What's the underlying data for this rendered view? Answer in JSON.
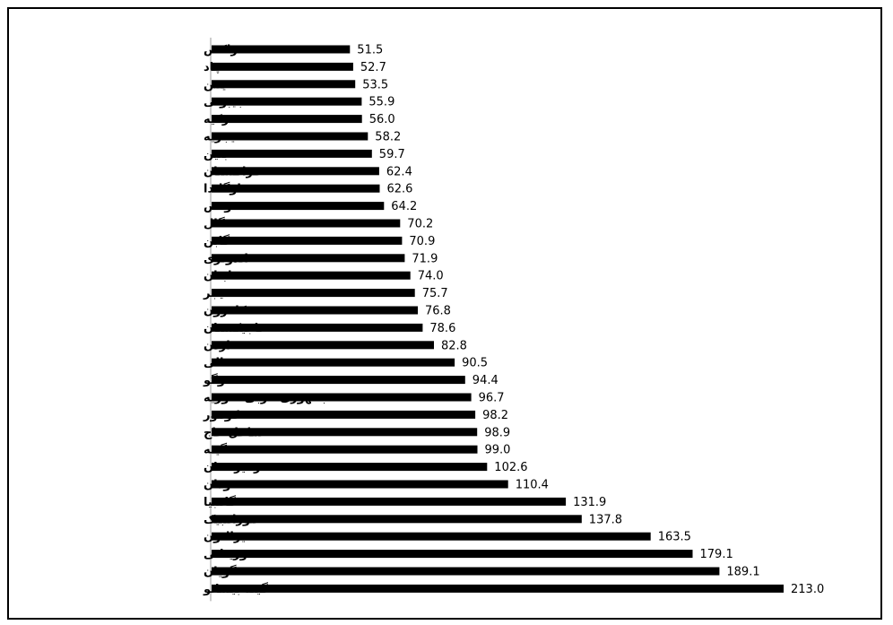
{
  "chart_data": {
    "type": "bar",
    "orientation": "horizontal",
    "categories": [
      "مراکش",
      "چاد",
      "یمن",
      "جیبوتی",
      "ترکیه",
      "نیجریه",
      "بنین",
      "قزاقستان",
      "اوگاندا",
      "تونس",
      "سنگال",
      "گابن",
      "اندونزی",
      "لبنان",
      "نیجر",
      "کامرون",
      "تاجیکستان",
      "اردن",
      "مالی",
      "توگو",
      "جمهوری عربی سوریه",
      "کومور",
      "ساحل عاج",
      "گینه",
      "قرقیزستان",
      "سودان",
      "گامبیا",
      "موزامبیک",
      "سیرالئون",
      "موریتانی",
      "گویان",
      "گینه بیسائو"
    ],
    "values": [
      51.5,
      52.7,
      53.5,
      55.9,
      56.0,
      58.2,
      59.7,
      62.4,
      62.6,
      64.2,
      70.2,
      70.9,
      71.9,
      74.0,
      75.7,
      76.8,
      78.6,
      82.8,
      90.5,
      94.4,
      96.7,
      98.2,
      98.9,
      99.0,
      102.6,
      110.4,
      131.9,
      137.8,
      163.5,
      179.1,
      189.1,
      213.0
    ],
    "value_labels": [
      "51.5",
      "52.7",
      "53.5",
      "55.9",
      "56.0",
      "58.2",
      "59.7",
      "62.4",
      "62.6",
      "64.2",
      "70.2",
      "70.9",
      "71.9",
      "74.0",
      "75.7",
      "76.8",
      "78.6",
      "82.8",
      "90.5",
      "94.4",
      "96.7",
      "98.2",
      "98.9",
      "99.0",
      "102.6",
      "110.4",
      "131.9",
      "137.8",
      "163.5",
      "179.1",
      "189.1",
      "213.0"
    ],
    "xlim": [
      0,
      213.0
    ],
    "grid": false,
    "bar_color": "#000000"
  }
}
